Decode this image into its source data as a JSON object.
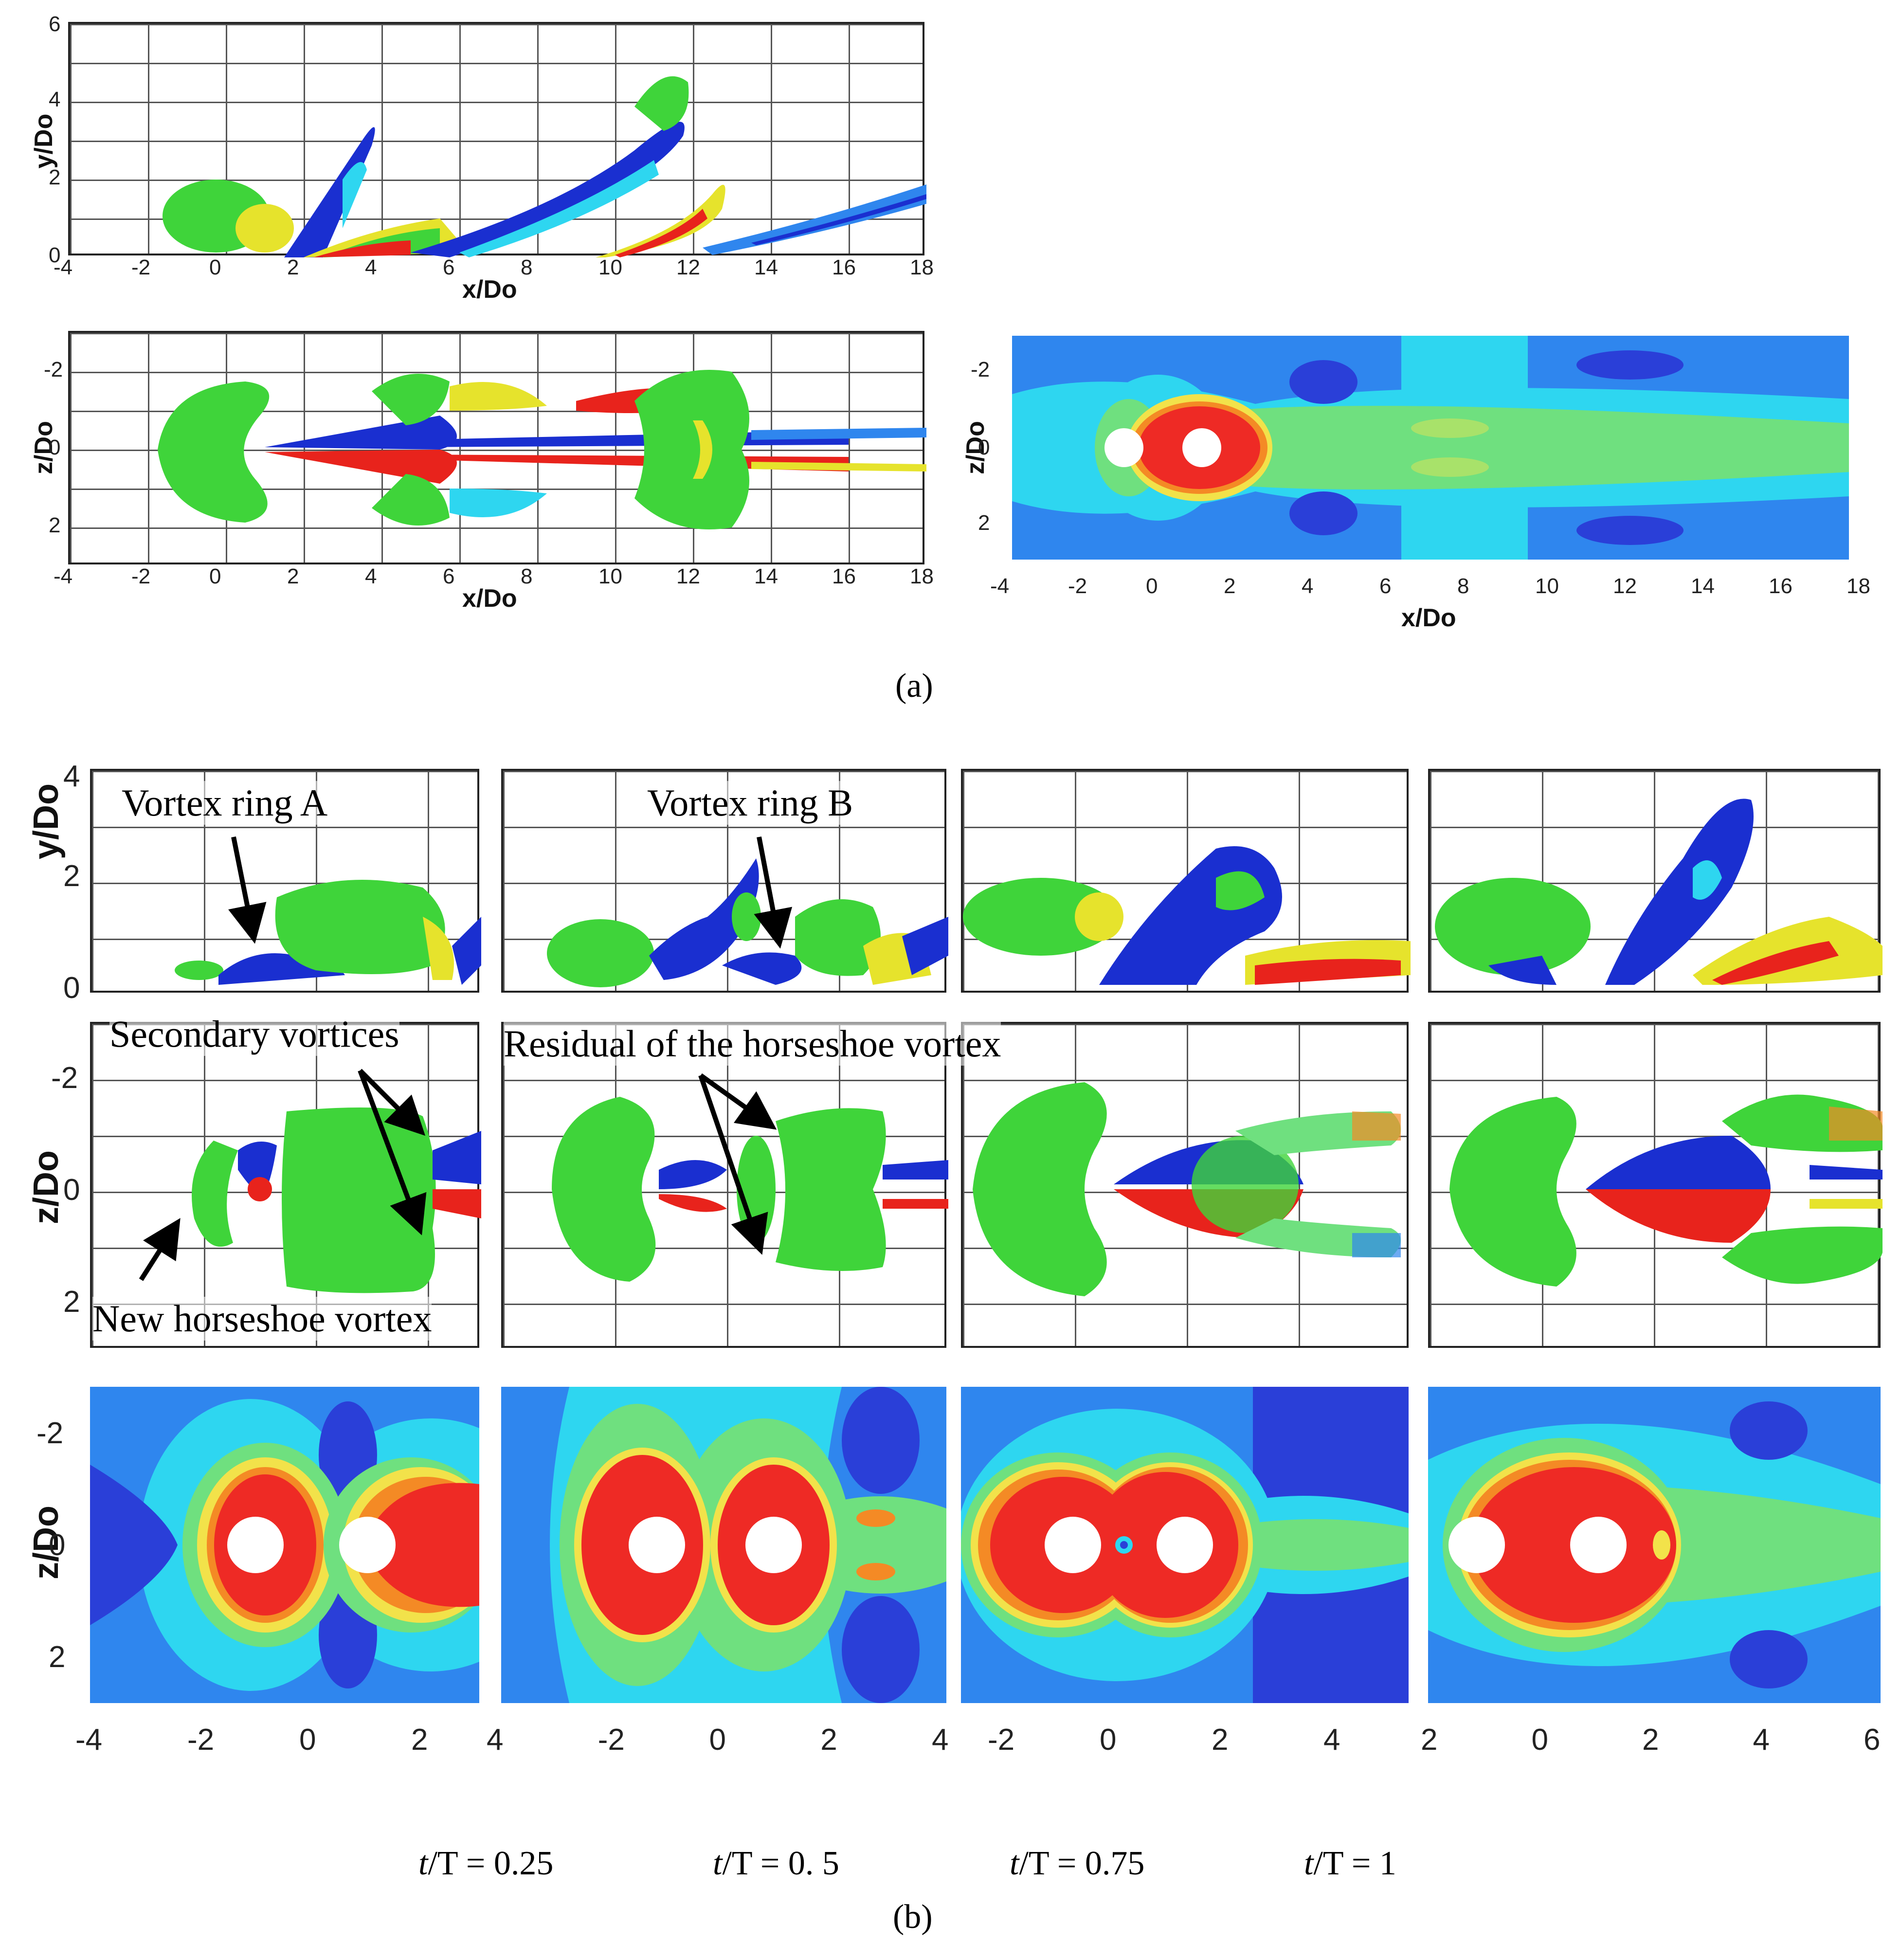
{
  "panel_a": {
    "label": "(a)",
    "side_view": {
      "ylabel": "y/Do",
      "xlabel": "x/Do",
      "yticks": [
        "0",
        "2",
        "4",
        "6"
      ],
      "xticks": [
        "-4",
        "-2",
        "0",
        "2",
        "4",
        "6",
        "8",
        "10",
        "12",
        "14",
        "16",
        "18"
      ]
    },
    "top_view": {
      "ylabel": "z/Do",
      "xlabel": "x/Do",
      "yticks": [
        "-2",
        "0",
        "2"
      ],
      "xticks": [
        "-4",
        "-2",
        "0",
        "2",
        "4",
        "6",
        "8",
        "10",
        "12",
        "14",
        "16",
        "18"
      ]
    },
    "contour_view": {
      "ylabel": "z/Do",
      "xlabel": "x/Do",
      "yticks": [
        "-2",
        "0",
        "2"
      ],
      "xticks": [
        "-4",
        "-2",
        "0",
        "2",
        "4",
        "6",
        "8",
        "10",
        "12",
        "14",
        "16",
        "18"
      ]
    }
  },
  "panel_b": {
    "label": "(b)",
    "row_labels": {
      "side": "y/Do",
      "top": "z/Do",
      "contour": "z/Do"
    },
    "side_yticks": [
      "0",
      "2",
      "4"
    ],
    "top_yticks": [
      "-2",
      "0",
      "2"
    ],
    "contour_yticks": [
      "-2",
      "0",
      "2"
    ],
    "column_xticks": [
      [
        "-4",
        "-2",
        "0",
        "2"
      ],
      [
        "4",
        "-2",
        "0",
        "2",
        "4"
      ],
      [
        "-2",
        "0",
        "2",
        "4"
      ],
      [
        "2",
        "0",
        "2",
        "4",
        "6"
      ]
    ],
    "annotations": {
      "vortex_ring_a": "Vortex ring A",
      "vortex_ring_b": "Vortex ring B",
      "secondary_vortices": "Secondary vortices",
      "residual_horseshoe": "Residual of the horseshoe vortex",
      "new_horseshoe": "New horseshoe vortex"
    },
    "time_labels": [
      {
        "var": "t",
        "rest": "/T = 0.25"
      },
      {
        "var": "t",
        "rest": "/T = 0. 5"
      },
      {
        "var": "t",
        "rest": "/T = 0.75"
      },
      {
        "var": "t",
        "rest": "/T = 1"
      }
    ]
  },
  "colors": {
    "vortex_green": "#3fd43a",
    "vortex_blue": "#1a2fd0",
    "vortex_red": "#e8231c",
    "vortex_yellow": "#e6e32c",
    "contour_dark_blue": "#2a3fd8",
    "contour_blue": "#2f86ee",
    "contour_cyan": "#2ed6f0",
    "contour_green": "#6fe07f",
    "contour_yellow": "#f2e24a",
    "contour_orange": "#f48a25",
    "contour_red": "#ee2a25"
  }
}
